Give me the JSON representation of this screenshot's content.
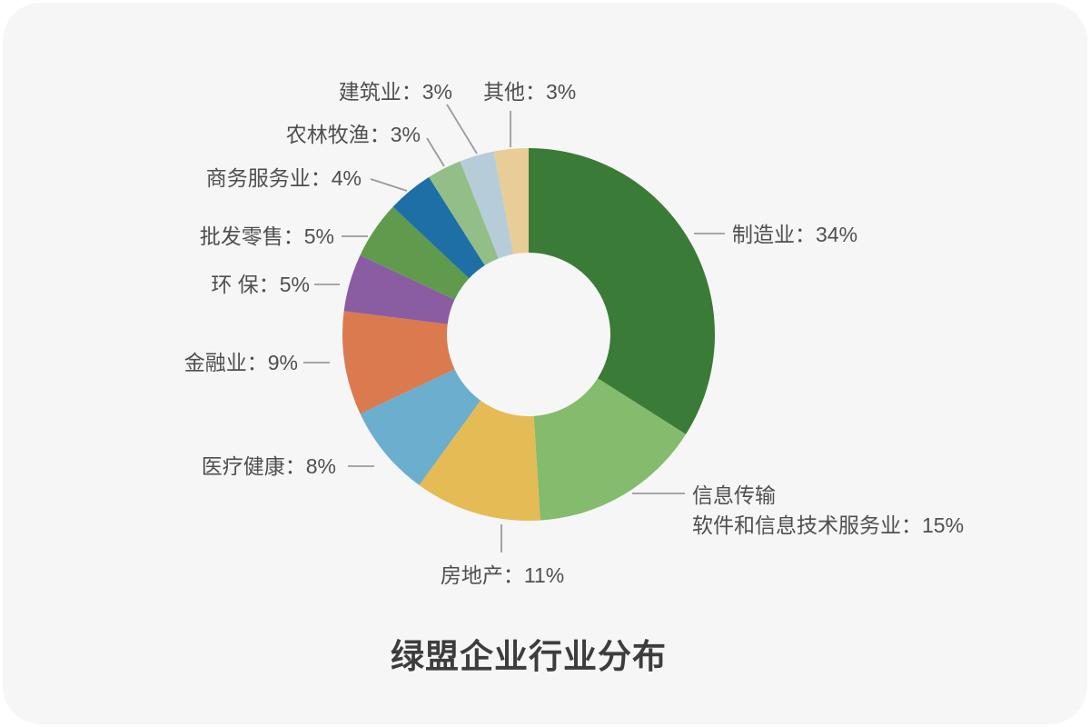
{
  "page": {
    "background": "#ffffff",
    "card_background": "#f6f6f6",
    "label_text_color": "#4f4f4f",
    "title_color": "#3d3d3d",
    "leader_line_color": "#9a9a9a"
  },
  "chart_data": {
    "type": "pie",
    "variant": "donut",
    "title": "绿盟企业行业分布",
    "unit": "%",
    "total": 100,
    "legend_position": "none",
    "start_angle": "top",
    "direction": "clockwise",
    "slices": [
      {
        "name": "制造业",
        "value": 34,
        "color": "#3a7b37",
        "label_lines": [
          "制造业：34%"
        ]
      },
      {
        "name": "信息传输软件和信息技术服务业",
        "value": 15,
        "color": "#84bb6d",
        "label_lines": [
          "信息传输",
          "软件和信息技术服务业：15%"
        ]
      },
      {
        "name": "房地产",
        "value": 11,
        "color": "#e5bb55",
        "label_lines": [
          "房地产：11%"
        ]
      },
      {
        "name": "医疗健康",
        "value": 8,
        "color": "#6caecd",
        "label_lines": [
          "医疗健康：8%"
        ]
      },
      {
        "name": "金融业",
        "value": 9,
        "color": "#db794f",
        "label_lines": [
          "金融业：9%"
        ]
      },
      {
        "name": "环保",
        "value": 5,
        "color": "#8a5da2",
        "label_lines": [
          "环 保：5%"
        ]
      },
      {
        "name": "批发零售",
        "value": 5,
        "color": "#5f9a4d",
        "label_lines": [
          "批发零售：5%"
        ]
      },
      {
        "name": "商务服务业",
        "value": 4,
        "color": "#1d6fa5",
        "label_lines": [
          "商务服务业：4%"
        ]
      },
      {
        "name": "农林牧渔",
        "value": 3,
        "color": "#93be88",
        "label_lines": [
          "农林牧渔：3%"
        ]
      },
      {
        "name": "建筑业",
        "value": 3,
        "color": "#b6ccd8",
        "label_lines": [
          "建筑业：3%"
        ]
      },
      {
        "name": "其他",
        "value": 3,
        "color": "#e8cd96",
        "label_lines": [
          "其他：3%"
        ]
      }
    ]
  }
}
